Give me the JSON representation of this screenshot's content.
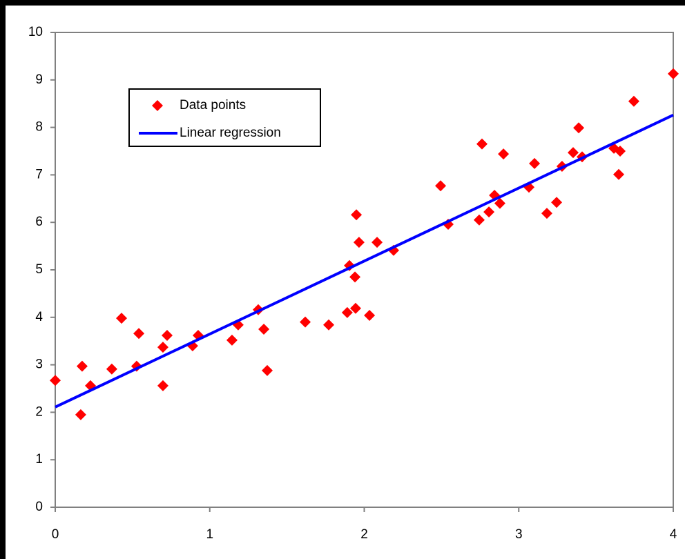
{
  "chart_data": {
    "type": "scatter",
    "series": [
      {
        "name": "Data points",
        "type": "scatter",
        "color": "#ff0000",
        "x": [
          0,
          0.165,
          0.174,
          0.228,
          0.366,
          0.429,
          0.527,
          0.541,
          0.697,
          0.697,
          0.724,
          0.889,
          0.925,
          1.144,
          1.184,
          1.314,
          1.35,
          1.372,
          1.618,
          1.77,
          1.89,
          1.904,
          1.94,
          1.944,
          1.949,
          1.966,
          2.034,
          2.083,
          2.19,
          2.494,
          2.543,
          2.744,
          2.762,
          2.807,
          2.843,
          2.878,
          2.901,
          3.066,
          3.102,
          3.182,
          3.245,
          3.28,
          3.352,
          3.388,
          3.41,
          3.616,
          3.647,
          3.656,
          3.745,
          4.0
        ],
        "values": [
          2.67,
          1.95,
          2.97,
          2.56,
          2.91,
          3.98,
          2.97,
          3.66,
          3.37,
          2.56,
          3.62,
          3.4,
          3.62,
          3.52,
          3.84,
          4.16,
          3.75,
          2.88,
          3.9,
          3.84,
          4.1,
          5.09,
          4.85,
          4.19,
          6.16,
          5.58,
          4.04,
          5.58,
          5.41,
          6.77,
          5.96,
          6.05,
          7.65,
          6.22,
          6.57,
          6.4,
          7.44,
          6.74,
          7.24,
          6.19,
          6.42,
          7.18,
          7.47,
          7.99,
          7.38,
          7.56,
          7.01,
          7.5,
          8.55,
          9.13
        ]
      },
      {
        "name": "Linear regression",
        "type": "line",
        "color": "#0000ff",
        "x": [
          0,
          4
        ],
        "values": [
          2.11,
          8.26
        ]
      }
    ],
    "xlim": [
      0,
      4
    ],
    "xticks": [
      0,
      1,
      2,
      3,
      4
    ],
    "ylim": [
      0,
      10
    ],
    "yticks": [
      0,
      1,
      2,
      3,
      4,
      5,
      6,
      7,
      8,
      9,
      10
    ],
    "legend": "upper left"
  }
}
